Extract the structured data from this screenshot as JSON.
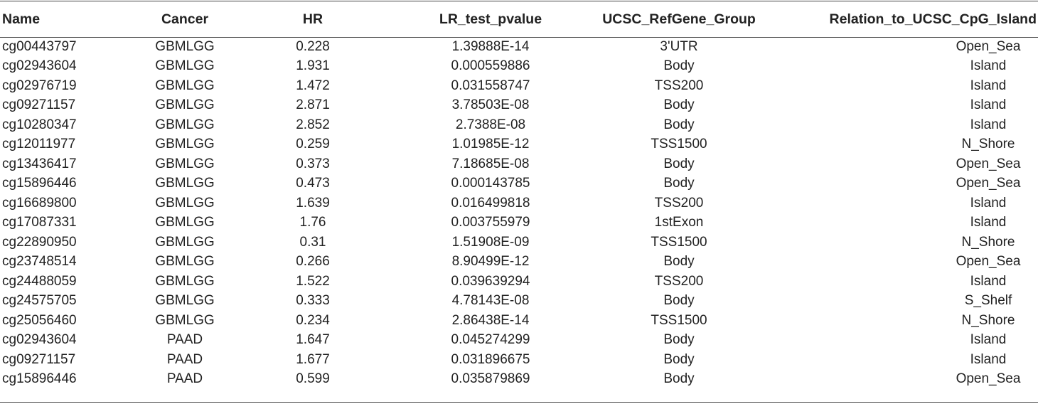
{
  "table": {
    "headers": [
      "Name",
      "Cancer",
      "HR",
      "LR_test_pvalue",
      "UCSC_RefGene_Group",
      "Relation_to_UCSC_CpG_Island"
    ],
    "rows": [
      [
        "cg00443797",
        "GBMLGG",
        "0.228",
        "1.39888E-14",
        "3'UTR",
        "Open_Sea"
      ],
      [
        "cg02943604",
        "GBMLGG",
        "1.931",
        "0.000559886",
        "Body",
        "Island"
      ],
      [
        "cg02976719",
        "GBMLGG",
        "1.472",
        "0.031558747",
        "TSS200",
        "Island"
      ],
      [
        "cg09271157",
        "GBMLGG",
        "2.871",
        "3.78503E-08",
        "Body",
        "Island"
      ],
      [
        "cg10280347",
        "GBMLGG",
        "2.852",
        "2.7388E-08",
        "Body",
        "Island"
      ],
      [
        "cg12011977",
        "GBMLGG",
        "0.259",
        "1.01985E-12",
        "TSS1500",
        "N_Shore"
      ],
      [
        "cg13436417",
        "GBMLGG",
        "0.373",
        "7.18685E-08",
        "Body",
        "Open_Sea"
      ],
      [
        "cg15896446",
        "GBMLGG",
        "0.473",
        "0.000143785",
        "Body",
        "Open_Sea"
      ],
      [
        "cg16689800",
        "GBMLGG",
        "1.639",
        "0.016499818",
        "TSS200",
        "Island"
      ],
      [
        "cg17087331",
        "GBMLGG",
        "1.76",
        "0.003755979",
        "1stExon",
        "Island"
      ],
      [
        "cg22890950",
        "GBMLGG",
        "0.31",
        "1.51908E-09",
        "TSS1500",
        "N_Shore"
      ],
      [
        "cg23748514",
        "GBMLGG",
        "0.266",
        "8.90499E-12",
        "Body",
        "Open_Sea"
      ],
      [
        "cg24488059",
        "GBMLGG",
        "1.522",
        "0.039639294",
        "TSS200",
        "Island"
      ],
      [
        "cg24575705",
        "GBMLGG",
        "0.333",
        "4.78143E-08",
        "Body",
        "S_Shelf"
      ],
      [
        "cg25056460",
        "GBMLGG",
        "0.234",
        "2.86438E-14",
        "TSS1500",
        "N_Shore"
      ],
      [
        "cg02943604",
        "PAAD",
        "1.647",
        "0.045274299",
        "Body",
        "Island"
      ],
      [
        "cg09271157",
        "PAAD",
        "1.677",
        "0.031896675",
        "Body",
        "Island"
      ],
      [
        "cg15896446",
        "PAAD",
        "0.599",
        "0.035879869",
        "Body",
        "Open_Sea"
      ]
    ]
  }
}
